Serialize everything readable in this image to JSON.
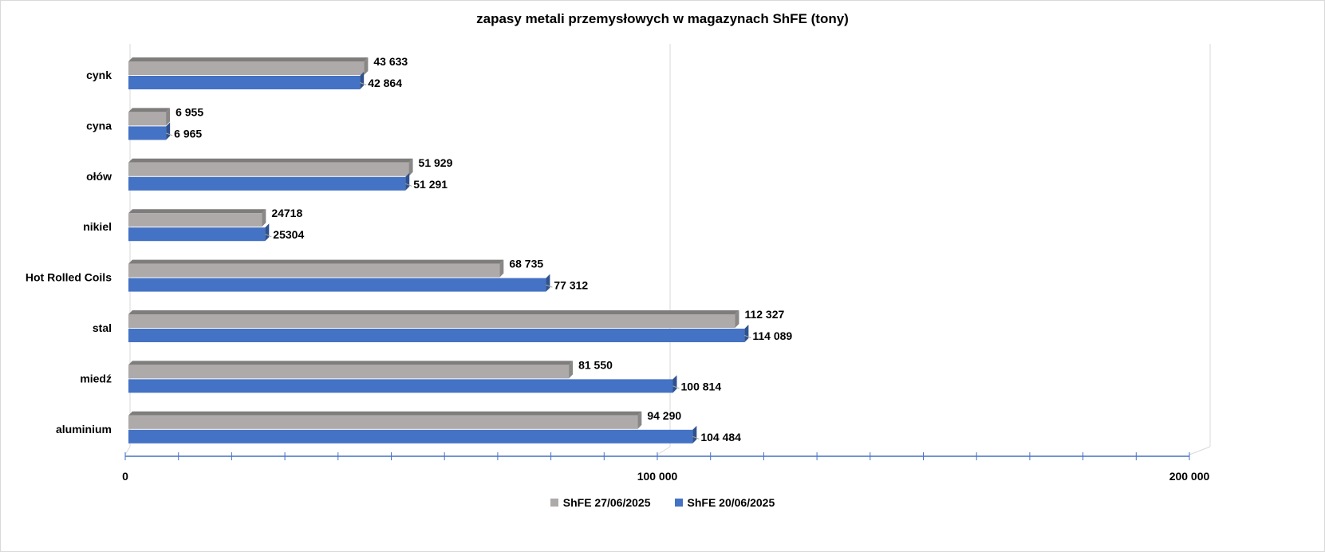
{
  "chart_data": {
    "type": "bar",
    "orientation": "horizontal",
    "title": "zapasy metali przemysłowych w magazynach ShFE (tony)",
    "xlabel": "",
    "ylabel": "",
    "xlim": [
      0,
      200000
    ],
    "x_ticks": [
      "0",
      "100 000",
      "200 000"
    ],
    "categories": [
      "cynk",
      "cyna",
      "ołów",
      "nikiel",
      "Hot Rolled Coils",
      "stal",
      "miedź",
      "aluminium"
    ],
    "series": [
      {
        "name": "ShFE 27/06/2025",
        "color": "#aeaaaa",
        "values": [
          43633,
          6955,
          51929,
          24718,
          68735,
          112327,
          81550,
          94290
        ],
        "labels": [
          "43 633",
          "6 955",
          "51 929",
          "24718",
          "68 735",
          "112 327",
          "81 550",
          "94 290"
        ]
      },
      {
        "name": "ShFE 20/06/2025",
        "color": "#4472c4",
        "values": [
          42864,
          6965,
          51291,
          25304,
          77312,
          114089,
          100814,
          104484
        ],
        "labels": [
          "42 864",
          "6 965",
          "51 291",
          "25304",
          "77 312",
          "114 089",
          "100 814",
          "104 484"
        ]
      }
    ],
    "legend_position": "bottom",
    "grid": true
  }
}
